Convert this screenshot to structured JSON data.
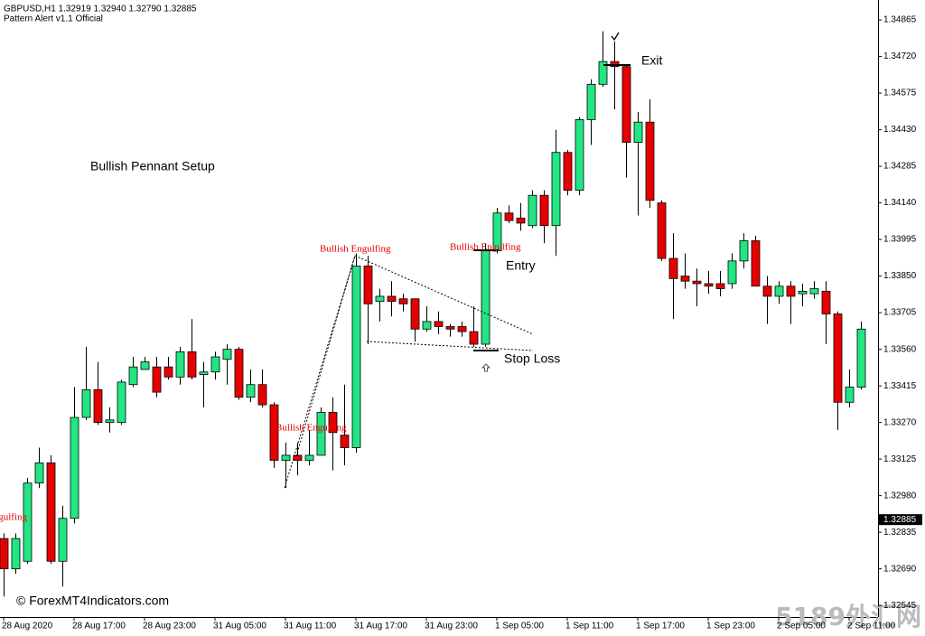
{
  "header": {
    "symbol_line": "GBPUSD,H1  1.32919 1.32940 1.32790 1.32885",
    "indicator": "Pattern Alert v1.1 Official"
  },
  "chart_data": {
    "type": "candlestick",
    "categories": [
      "28 Aug 2020",
      null,
      null,
      null,
      null,
      null,
      "28 Aug 17:00",
      null,
      null,
      null,
      null,
      null,
      "28 Aug 23:00",
      null,
      null,
      null,
      null,
      null,
      "31 Aug 05:00",
      null,
      null,
      null,
      null,
      null,
      "31 Aug 11:00",
      null,
      null,
      null,
      null,
      null,
      "31 Aug 17:00",
      null,
      null,
      null,
      null,
      null,
      "31 Aug 23:00",
      null,
      null,
      null,
      null,
      null,
      "1 Sep 05:00",
      null,
      null,
      null,
      null,
      null,
      "1 Sep 11:00",
      null,
      null,
      null,
      null,
      null,
      "1 Sep 17:00",
      null,
      null,
      null,
      null,
      null,
      "1 Sep 23:00",
      null,
      null,
      null,
      null,
      null,
      "2 Sep 05:00",
      null,
      null,
      null,
      null,
      null,
      "2 Sep 11:00",
      null
    ],
    "open": [
      1.3281,
      1.3269,
      1.3272,
      1.3303,
      1.3311,
      1.3272,
      1.3289,
      1.3329,
      1.334,
      1.3327,
      1.3327,
      1.3342,
      1.3348,
      1.3349,
      1.3349,
      1.3345,
      1.3355,
      1.3346,
      1.3347,
      1.3352,
      1.3356,
      1.3337,
      1.3342,
      1.3334,
      1.3312,
      1.3314,
      1.3312,
      1.3314,
      1.3331,
      1.3322,
      1.3317,
      1.3389,
      1.3375,
      1.3377,
      1.3376,
      1.3376,
      1.3364,
      1.3367,
      1.3365,
      1.3365,
      1.3363,
      1.3358,
      1.3395,
      1.341,
      1.3408,
      1.3405,
      1.3417,
      1.3405,
      1.3434,
      1.3419,
      1.3447,
      1.3461,
      1.347,
      1.3468,
      1.3438,
      1.3446,
      1.3414,
      1.3392,
      1.3385,
      1.3383,
      1.3382,
      1.3382,
      1.3382,
      1.3391,
      1.3399,
      1.3381,
      1.3377,
      1.3381,
      1.3378,
      1.3378,
      1.3379,
      1.337,
      1.3335,
      1.3341
    ],
    "high": [
      1.3283,
      1.3283,
      1.3305,
      1.3317,
      1.3314,
      1.3294,
      1.3341,
      1.3357,
      1.3351,
      1.3333,
      1.3344,
      1.3353,
      1.3353,
      1.3353,
      1.3353,
      1.3357,
      1.3368,
      1.3351,
      1.3355,
      1.3358,
      1.3357,
      1.3348,
      1.3348,
      1.3335,
      1.3319,
      1.3319,
      1.3324,
      1.3333,
      1.3337,
      1.3342,
      1.3394,
      1.3393,
      1.338,
      1.3383,
      1.3378,
      1.3376,
      1.3373,
      1.3371,
      1.3366,
      1.3367,
      1.3373,
      1.3398,
      1.3412,
      1.3413,
      1.3414,
      1.3419,
      1.3419,
      1.3443,
      1.3435,
      1.3448,
      1.3463,
      1.3482,
      1.3478,
      1.3469,
      1.345,
      1.3455,
      1.3415,
      1.3402,
      1.3394,
      1.3388,
      1.3387,
      1.3387,
      1.3394,
      1.3402,
      1.3401,
      1.3385,
      1.3383,
      1.3383,
      1.3382,
      1.3383,
      1.3383,
      1.3371,
      1.3348,
      1.3367
    ],
    "low": [
      1.3258,
      1.3267,
      1.3271,
      1.3301,
      1.3271,
      1.3262,
      1.3287,
      1.3328,
      1.3326,
      1.3323,
      1.3326,
      1.3341,
      1.3348,
      1.3337,
      1.3344,
      1.3342,
      1.3344,
      1.3333,
      1.3344,
      1.3342,
      1.3336,
      1.3335,
      1.3333,
      1.3309,
      1.3301,
      1.3306,
      1.331,
      1.3314,
      1.3308,
      1.331,
      1.3315,
      1.3358,
      1.3367,
      1.3369,
      1.3371,
      1.3359,
      1.3363,
      1.3362,
      1.3361,
      1.3361,
      1.3357,
      1.3357,
      1.3394,
      1.3406,
      1.3403,
      1.3404,
      1.3398,
      1.3393,
      1.3417,
      1.3417,
      1.3437,
      1.346,
      1.3451,
      1.3424,
      1.3409,
      1.3412,
      1.3391,
      1.3368,
      1.338,
      1.3373,
      1.3378,
      1.3377,
      1.338,
      1.3388,
      1.3381,
      1.3366,
      1.3374,
      1.3366,
      1.3373,
      1.3376,
      1.3358,
      1.3324,
      1.3333,
      1.334
    ],
    "close": [
      1.3269,
      1.3281,
      1.3303,
      1.3311,
      1.3272,
      1.3289,
      1.3329,
      1.334,
      1.3327,
      1.3328,
      1.3343,
      1.3349,
      1.3351,
      1.3339,
      1.3345,
      1.3355,
      1.3345,
      1.3347,
      1.3353,
      1.3356,
      1.3337,
      1.3342,
      1.3334,
      1.3312,
      1.3314,
      1.3312,
      1.3314,
      1.3331,
      1.3323,
      1.3317,
      1.3389,
      1.3374,
      1.3377,
      1.3375,
      1.3374,
      1.3364,
      1.3367,
      1.3365,
      1.3364,
      1.3363,
      1.3358,
      1.3395,
      1.341,
      1.3407,
      1.3406,
      1.3417,
      1.3405,
      1.3434,
      1.3419,
      1.3447,
      1.3461,
      1.347,
      1.3468,
      1.3438,
      1.3446,
      1.3415,
      1.3392,
      1.3384,
      1.3383,
      1.3382,
      1.3381,
      1.338,
      1.3391,
      1.3399,
      1.3381,
      1.3377,
      1.3381,
      1.3377,
      1.3379,
      1.338,
      1.337,
      1.3335,
      1.3341,
      1.3364
    ],
    "up_color": "#22e684",
    "down_color": "#e60000",
    "ylim": [
      1.32499,
      1.34944
    ],
    "yticks": [
      1.34865,
      {
        "value": 1.3472,
        "label": "1.34720"
      },
      1.34575,
      {
        "value": 1.3443,
        "label": "1.34430"
      },
      1.34285,
      {
        "value": 1.3414,
        "label": "1.34140"
      },
      1.33995,
      {
        "value": 1.3385,
        "label": "1.33850"
      },
      1.33705,
      {
        "value": 1.3356,
        "label": "1.33560"
      },
      1.33415,
      {
        "value": 1.3327,
        "label": "1.33270"
      },
      1.33125,
      {
        "value": 1.3298,
        "label": "1.32980"
      },
      1.32835,
      {
        "value": 1.3269,
        "label": "1.32690"
      },
      1.32545
    ],
    "current_price": 1.32885,
    "grid": false,
    "annotations": {
      "setup": "Bullish Pennant Setup",
      "exit": "Exit",
      "entry": "Entry",
      "stop_loss": "Stop Loss",
      "patterns": [
        "Bullish Engulfing",
        "Bullish Engulfing",
        "Bullish Engulfing",
        "Bullish Engulfing"
      ]
    }
  },
  "footer": {
    "copyright": "© ForexMT4Indicators.com",
    "watermark": "5189外汇网"
  }
}
